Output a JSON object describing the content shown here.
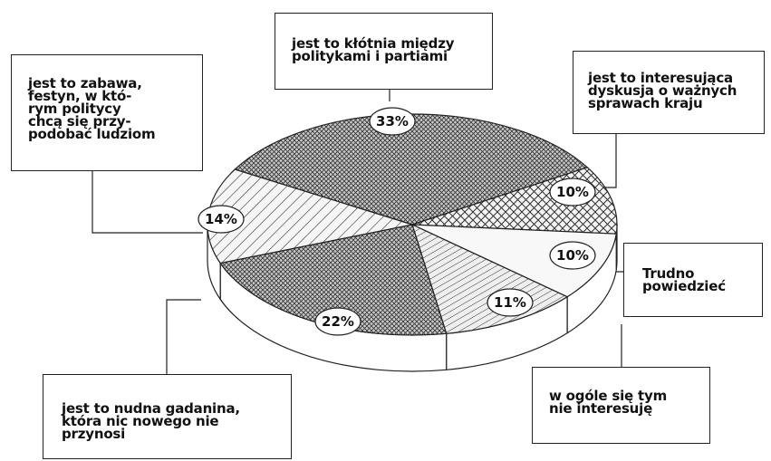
{
  "chart_data": {
    "type": "pie",
    "slices": [
      {
        "label": "jest to kłótnia między\npolitykami i partiami",
        "value": 33,
        "value_label": "33%",
        "pattern": "crosshatch-dense"
      },
      {
        "label": "jest to interesująca\ndyskusja o ważnych\nsprawach kraju",
        "value": 10,
        "value_label": "10%",
        "pattern": "crosshatch-diagonal"
      },
      {
        "label": "Trudno\npowiedzieć",
        "value": 10,
        "value_label": "10%",
        "pattern": "blank"
      },
      {
        "label": "w ogóle się tym\nnie interesuję",
        "value": 11,
        "value_label": "11%",
        "pattern": "horizontal-diagonal"
      },
      {
        "label": "jest to nudna gadanina,\nktóra nic nowego nie\nprzynosi",
        "value": 22,
        "value_label": "22%",
        "pattern": "crosshatch-dense"
      },
      {
        "label": "jest to zabawa,\nfestyn, w któ-\nrym politycy\nchcą się przy-\npodobać ludziom",
        "value": 14,
        "value_label": "14%",
        "pattern": "diagonal"
      }
    ],
    "legend": "none",
    "style": "3d-pie"
  }
}
